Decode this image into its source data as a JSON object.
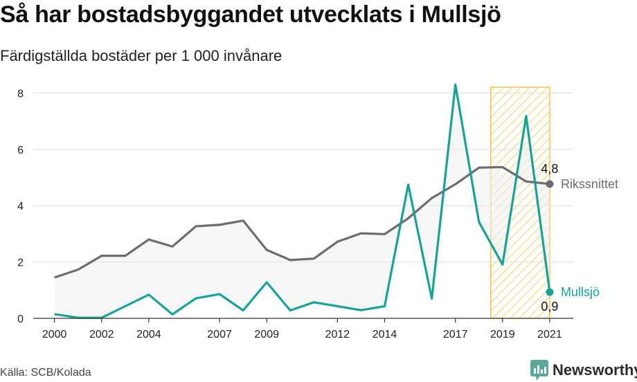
{
  "title": "Så har bostadsbyggandet utvecklats i Mullsjö",
  "subtitle": "Färdigställda bostäder per 1 000 invånare",
  "source": "Källa: SCB/Kolada",
  "brand": {
    "name": "Newsworthy",
    "icon": "newsworthy-logo-icon",
    "color": "#5aa899"
  },
  "colors": {
    "national": "#6e6a72",
    "municipality": "#16a394",
    "highlight": "#f2c34e",
    "grid": "#dddddd"
  },
  "chart_data": {
    "type": "line",
    "x": [
      2000,
      2001,
      2002,
      2003,
      2004,
      2005,
      2006,
      2007,
      2008,
      2009,
      2010,
      2011,
      2012,
      2013,
      2014,
      2015,
      2016,
      2017,
      2018,
      2019,
      2020,
      2021
    ],
    "xticks": [
      2000,
      2002,
      2004,
      2007,
      2009,
      2012,
      2014,
      2017,
      2019,
      2021
    ],
    "xtick_labels": [
      "2000",
      "2002",
      "2004",
      "2007",
      "2009",
      "2012",
      "2014",
      "2017",
      "2019",
      "2021"
    ],
    "yticks": [
      0,
      2,
      4,
      6,
      8
    ],
    "ytick_labels": [
      "0",
      "2",
      "4",
      "6",
      "8"
    ],
    "ylim": [
      0,
      8.6
    ],
    "xlim": [
      1999.1,
      2022.0
    ],
    "grid": true,
    "highlight_range": [
      2018.5,
      2021.0
    ],
    "series": [
      {
        "name": "Rikssnittet",
        "color": "#6e6a72",
        "values": [
          1.45,
          1.73,
          2.22,
          2.22,
          2.8,
          2.55,
          3.27,
          3.32,
          3.47,
          2.43,
          2.07,
          2.12,
          2.72,
          3.02,
          2.99,
          3.55,
          4.27,
          4.76,
          5.35,
          5.37,
          4.86,
          4.77
        ],
        "end_label": "4,8"
      },
      {
        "name": "Mullsjö",
        "color": "#16a394",
        "values": [
          0.15,
          0.02,
          0.02,
          0.43,
          0.84,
          0.14,
          0.71,
          0.86,
          0.28,
          1.28,
          0.28,
          0.57,
          0.43,
          0.29,
          0.43,
          4.75,
          0.7,
          8.3,
          3.42,
          1.91,
          7.18,
          0.93
        ],
        "end_label": "0,9"
      }
    ]
  }
}
